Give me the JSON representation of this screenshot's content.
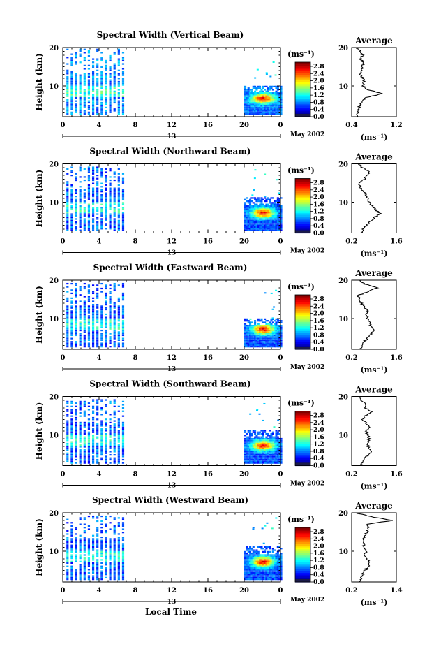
{
  "figure": {
    "x_axis_label": "Local Time",
    "date_label": "May 2002",
    "day_label": "13",
    "colorbar_unit": "(ms⁻¹)",
    "colorbar_ticks": [
      "2.8",
      "2.4",
      "2.0",
      "1.6",
      "1.2",
      "0.8",
      "0.4",
      "0.0"
    ]
  },
  "chart_data": [
    {
      "type": "heatmap",
      "title": "Spectral Width (Vertical Beam)",
      "ylabel": "Height (km)",
      "xlabel": "Local Time",
      "x_ticks": [
        "0",
        "4",
        "8",
        "12",
        "16",
        "20",
        "0"
      ],
      "y_ticks": [
        "10",
        "20"
      ],
      "xlim": [
        0,
        24
      ],
      "ylim": [
        2,
        20
      ],
      "colorbar": {
        "min": 0.0,
        "max": 3.0,
        "unit": "ms-1"
      },
      "data_blocks": [
        {
          "x_range": [
            0.4,
            7.0
          ],
          "y_range": [
            2.5,
            19.5
          ],
          "median": 0.7
        },
        {
          "x_range": [
            20.0,
            24.0
          ],
          "y_range": [
            2.5,
            10.0
          ],
          "median": 0.7,
          "peak": 2.6,
          "peak_at": [
            22.0,
            6.5
          ]
        }
      ],
      "average_profile": {
        "title": "Average",
        "xlabel": "(ms⁻¹)",
        "x_ticks": [
          "0.4",
          "1.2"
        ],
        "xlim": [
          0.4,
          1.2
        ],
        "y_ticks": [
          "10",
          "20"
        ],
        "ylim": [
          2,
          20
        ],
        "height": [
          2,
          3,
          4,
          5,
          6,
          7,
          8,
          9,
          10,
          11,
          12,
          13,
          14,
          15,
          16,
          17,
          18,
          19,
          20
        ],
        "value": [
          0.5,
          0.5,
          0.52,
          0.55,
          0.6,
          0.65,
          0.95,
          0.7,
          0.6,
          0.62,
          0.6,
          0.55,
          0.6,
          0.58,
          0.62,
          0.55,
          0.6,
          0.55,
          0.5
        ]
      }
    },
    {
      "type": "heatmap",
      "title": "Spectral Width (Northward Beam)",
      "ylabel": "Height (km)",
      "xlabel": "Local Time",
      "x_ticks": [
        "0",
        "4",
        "8",
        "12",
        "16",
        "20",
        "0"
      ],
      "y_ticks": [
        "10",
        "20"
      ],
      "xlim": [
        0,
        24
      ],
      "ylim": [
        2,
        20
      ],
      "colorbar": {
        "min": 0.0,
        "max": 3.0,
        "unit": "ms-1"
      },
      "data_blocks": [
        {
          "x_range": [
            0.4,
            7.0
          ],
          "y_range": [
            2.5,
            19.0
          ],
          "median": 0.6
        },
        {
          "x_range": [
            20.0,
            24.0
          ],
          "y_range": [
            2.5,
            11.0
          ],
          "median": 0.6,
          "peak": 2.6,
          "peak_at": [
            22.0,
            7.0
          ]
        }
      ],
      "average_profile": {
        "title": "Average",
        "xlabel": "(ms⁻¹)",
        "x_ticks": [
          "0.2",
          "1.6"
        ],
        "xlim": [
          0.2,
          1.6
        ],
        "y_ticks": [
          "10",
          "20"
        ],
        "ylim": [
          2,
          20
        ],
        "height": [
          2,
          3,
          4,
          5,
          6,
          7,
          8,
          9,
          10,
          11,
          12,
          13,
          14,
          15,
          16,
          17,
          18,
          19,
          20
        ],
        "value": [
          0.5,
          0.55,
          0.65,
          0.8,
          0.9,
          1.1,
          0.95,
          0.85,
          0.75,
          0.7,
          0.65,
          0.55,
          0.45,
          0.45,
          0.6,
          0.7,
          0.75,
          0.55,
          0.4
        ]
      }
    },
    {
      "type": "heatmap",
      "title": "Spectral Width (Eastward Beam)",
      "ylabel": "Height (km)",
      "xlabel": "Local Time",
      "x_ticks": [
        "0",
        "4",
        "8",
        "12",
        "16",
        "20",
        "0"
      ],
      "y_ticks": [
        "10",
        "20"
      ],
      "xlim": [
        0,
        24
      ],
      "ylim": [
        2,
        20
      ],
      "colorbar": {
        "min": 0.0,
        "max": 3.0,
        "unit": "ms-1"
      },
      "data_blocks": [
        {
          "x_range": [
            0.4,
            7.0
          ],
          "y_range": [
            2.5,
            19.0
          ],
          "median": 0.6
        },
        {
          "x_range": [
            20.0,
            24.0
          ],
          "y_range": [
            2.5,
            10.0
          ],
          "median": 0.6,
          "peak": 2.6,
          "peak_at": [
            22.0,
            7.0
          ]
        }
      ],
      "average_profile": {
        "title": "Average",
        "xlabel": "(ms⁻¹)",
        "x_ticks": [
          "0.2",
          "1.6"
        ],
        "xlim": [
          0.2,
          1.6
        ],
        "y_ticks": [
          "10",
          "20"
        ],
        "ylim": [
          2,
          20
        ],
        "height": [
          2,
          3,
          4,
          5,
          6,
          7,
          8,
          9,
          10,
          11,
          12,
          13,
          14,
          15,
          16,
          17,
          18,
          19,
          20
        ],
        "value": [
          0.5,
          0.55,
          0.6,
          0.7,
          0.8,
          0.9,
          0.8,
          0.75,
          0.7,
          0.65,
          0.7,
          0.6,
          0.5,
          0.45,
          0.4,
          0.7,
          1.0,
          0.6,
          0.45
        ]
      }
    },
    {
      "type": "heatmap",
      "title": "Spectral Width (Southward Beam)",
      "ylabel": "Height (km)",
      "xlabel": "Local Time",
      "x_ticks": [
        "0",
        "4",
        "8",
        "12",
        "16",
        "20",
        "0"
      ],
      "y_ticks": [
        "10",
        "20"
      ],
      "xlim": [
        0,
        24
      ],
      "ylim": [
        2,
        20
      ],
      "colorbar": {
        "min": 0.0,
        "max": 3.0,
        "unit": "ms-1"
      },
      "data_blocks": [
        {
          "x_range": [
            0.4,
            7.0
          ],
          "y_range": [
            2.5,
            19.0
          ],
          "median": 0.6
        },
        {
          "x_range": [
            20.0,
            24.0
          ],
          "y_range": [
            2.5,
            11.0
          ],
          "median": 0.6,
          "peak": 2.6,
          "peak_at": [
            22.0,
            7.0
          ]
        }
      ],
      "average_profile": {
        "title": "Average",
        "xlabel": "(ms⁻¹)",
        "x_ticks": [
          "0.2",
          "1.6"
        ],
        "xlim": [
          0.2,
          1.6
        ],
        "y_ticks": [
          "10",
          "20"
        ],
        "ylim": [
          2,
          20
        ],
        "height": [
          2,
          3,
          4,
          5,
          6,
          7,
          8,
          9,
          10,
          11,
          12,
          13,
          14,
          15,
          16,
          17,
          18,
          19,
          20
        ],
        "value": [
          0.5,
          0.55,
          0.6,
          0.75,
          0.8,
          0.7,
          0.7,
          0.75,
          0.7,
          0.65,
          0.75,
          0.65,
          0.55,
          0.65,
          0.8,
          0.6,
          0.65,
          0.5,
          0.45
        ]
      }
    },
    {
      "type": "heatmap",
      "title": "Spectral Width (Westward Beam)",
      "ylabel": "Height (km)",
      "xlabel": "Local Time",
      "x_ticks": [
        "0",
        "4",
        "8",
        "12",
        "16",
        "20",
        "0"
      ],
      "y_ticks": [
        "10",
        "20"
      ],
      "xlim": [
        0,
        24
      ],
      "ylim": [
        2,
        20
      ],
      "colorbar": {
        "min": 0.0,
        "max": 3.0,
        "unit": "ms-1"
      },
      "data_blocks": [
        {
          "x_range": [
            0.4,
            7.0
          ],
          "y_range": [
            2.5,
            19.0
          ],
          "median": 0.6
        },
        {
          "x_range": [
            20.0,
            24.0
          ],
          "y_range": [
            2.5,
            11.0
          ],
          "median": 0.6,
          "peak": 2.6,
          "peak_at": [
            22.0,
            7.0
          ]
        }
      ],
      "average_profile": {
        "title": "Average",
        "xlabel": "(ms⁻¹)",
        "x_ticks": [
          "0.2",
          "1.4"
        ],
        "xlim": [
          0.2,
          1.4
        ],
        "y_ticks": [
          "10",
          "20"
        ],
        "ylim": [
          2,
          20
        ],
        "height": [
          2,
          3,
          4,
          5,
          6,
          7,
          8,
          9,
          10,
          11,
          12,
          13,
          14,
          15,
          16,
          17,
          18,
          19,
          20
        ],
        "value": [
          0.4,
          0.45,
          0.5,
          0.55,
          0.65,
          0.7,
          0.6,
          0.55,
          0.6,
          0.5,
          0.55,
          0.5,
          0.55,
          0.6,
          0.65,
          0.6,
          1.3,
          0.7,
          0.3
        ]
      }
    }
  ]
}
